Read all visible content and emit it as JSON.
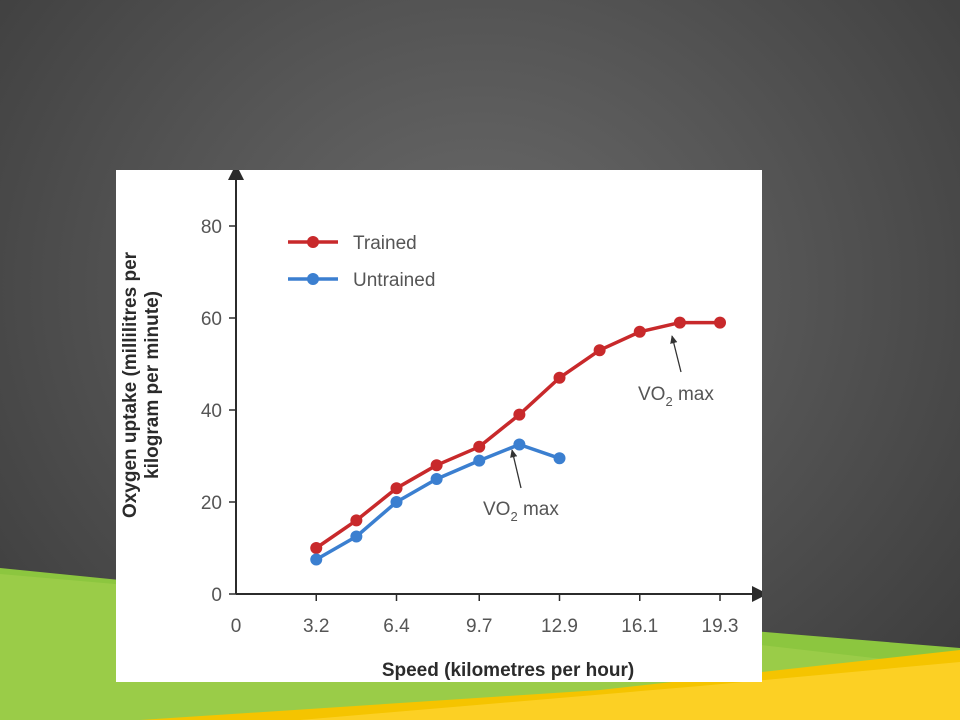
{
  "theme": {
    "background": "#555555",
    "accent_green": "#8cc63f",
    "accent_yellow": "#f5c400",
    "trained_color": "#c8292b",
    "untrained_color": "#3b7fd0"
  },
  "chart_data": {
    "type": "line",
    "xlabel": "Speed (kilometres per hour)",
    "ylabel_line1": "Oxygen uptake (millilitres per",
    "ylabel_line2": "kilogram per minute)",
    "x_tick_labels": [
      "0",
      "3.2",
      "6.4",
      "9.7",
      "12.9",
      "16.1",
      "19.3"
    ],
    "x_ticks": [
      0,
      3.2,
      6.4,
      9.7,
      12.9,
      16.1,
      19.3
    ],
    "y_ticks": [
      0,
      20,
      40,
      60,
      80
    ],
    "xlim": [
      0,
      20.5
    ],
    "ylim": [
      0,
      90
    ],
    "grid": false,
    "legend_position": "top-left",
    "series": [
      {
        "name": "Trained",
        "color": "#c8292b",
        "x": [
          3.2,
          4.8,
          6.4,
          8.0,
          9.7,
          11.3,
          12.9,
          14.5,
          16.1,
          17.7,
          19.3
        ],
        "y": [
          10,
          16,
          23,
          28,
          32,
          39,
          47,
          53,
          57,
          59,
          59
        ]
      },
      {
        "name": "Untrained",
        "color": "#3b7fd0",
        "x": [
          3.2,
          4.8,
          6.4,
          8.0,
          9.7,
          11.3,
          12.9
        ],
        "y": [
          7.5,
          12.5,
          20,
          25,
          29,
          32.5,
          29.5
        ]
      }
    ],
    "annotations": [
      {
        "label_main": "VO",
        "label_sub": "2",
        "label_rest": " max",
        "target_x": 17.7,
        "target_y": 59,
        "series": "Trained"
      },
      {
        "label_main": "VO",
        "label_sub": "2",
        "label_rest": " max",
        "target_x": 11.3,
        "target_y": 32.5,
        "series": "Untrained"
      }
    ]
  }
}
